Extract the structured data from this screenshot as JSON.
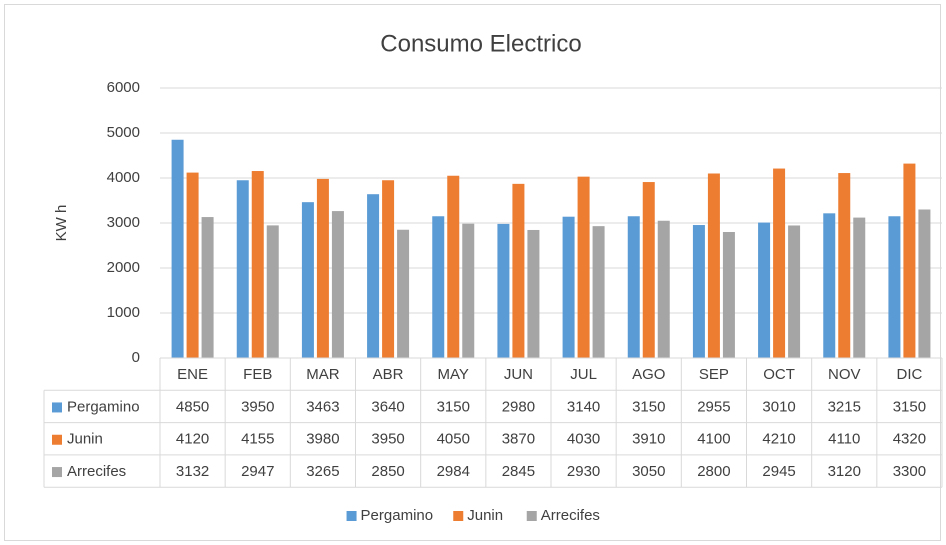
{
  "chart_data": {
    "type": "bar",
    "title": "Consumo Electrico",
    "y_label": "KW h",
    "categories": [
      "ENE",
      "FEB",
      "MAR",
      "ABR",
      "MAY",
      "JUN",
      "JUL",
      "AGO",
      "SEP",
      "OCT",
      "NOV",
      "DIC"
    ],
    "series": [
      {
        "name": "Pergamino",
        "color": "#5b9bd5",
        "values": [
          4850,
          3950,
          3463,
          3640,
          3150,
          2980,
          3140,
          3150,
          2955,
          3010,
          3215,
          3150
        ]
      },
      {
        "name": "Junin",
        "color": "#ed7d31",
        "values": [
          4120,
          4155,
          3980,
          3950,
          4050,
          3870,
          4030,
          3910,
          4100,
          4210,
          4110,
          4320
        ]
      },
      {
        "name": "Arrecifes",
        "color": "#a5a5a5",
        "values": [
          3132,
          2947,
          3265,
          2850,
          2984,
          2845,
          2930,
          3050,
          2800,
          2945,
          3120,
          3300
        ]
      }
    ],
    "ylim": [
      0,
      6000
    ],
    "yticks": [
      0,
      1000,
      2000,
      3000,
      4000,
      5000,
      6000
    ],
    "grid": true,
    "legend": "bottom"
  }
}
